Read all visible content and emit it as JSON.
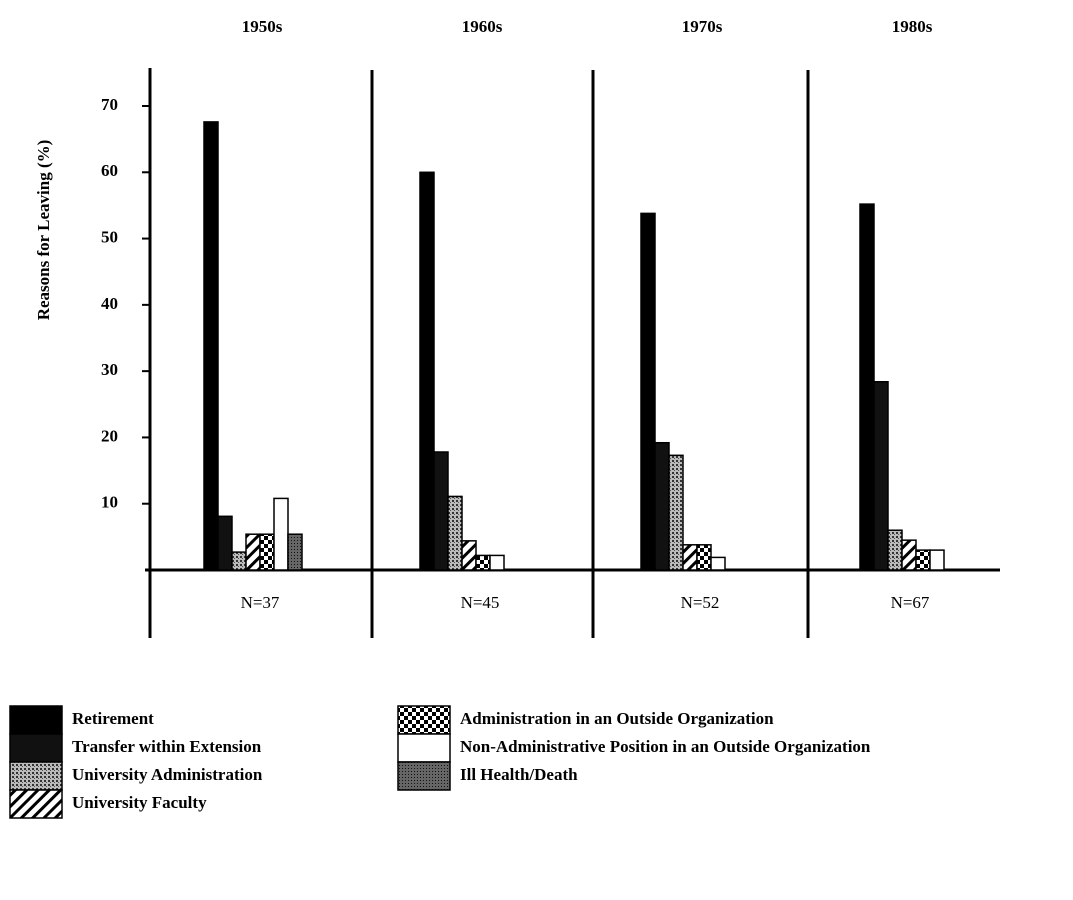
{
  "chart_data": {
    "type": "bar",
    "categories": [
      "1950s",
      "1960s",
      "1970s",
      "1980s"
    ],
    "group_labels": [
      "N=37",
      "N=45",
      "N=52",
      "N=67"
    ],
    "y_label": "Reasons for Leaving (%)",
    "ylim": [
      0,
      70
    ],
    "yticks": [
      10,
      20,
      30,
      40,
      50,
      60,
      70
    ],
    "series": [
      {
        "name": "Retirement",
        "color": "#000000",
        "pattern": "solid",
        "values": [
          67.6,
          60,
          53.8,
          55.2
        ]
      },
      {
        "name": "Transfer within Extension",
        "color": "#111111",
        "pattern": "solid",
        "values": [
          8.1,
          17.8,
          19.2,
          28.4
        ]
      },
      {
        "name": "University Administration",
        "color": "#777777",
        "pattern": "stipple",
        "values": [
          2.7,
          11.1,
          17.3,
          6
        ]
      },
      {
        "name": "University Faculty",
        "color": "#000000",
        "pattern": "hatch",
        "values": [
          5.4,
          4.4,
          3.8,
          4.5
        ]
      },
      {
        "name": "Administration in an Outside Organization",
        "color": "#000000",
        "pattern": "checker",
        "values": [
          5.4,
          2.2,
          3.8,
          3
        ]
      },
      {
        "name": "Non-Administrative Position in an Outside Organization",
        "color": "#ffffff",
        "pattern": "solid",
        "values": [
          10.8,
          2.2,
          1.9,
          3
        ]
      },
      {
        "name": "Ill Health/Death",
        "color": "#444444",
        "pattern": "dense",
        "values": [
          5.4,
          0,
          0,
          0
        ]
      }
    ]
  }
}
